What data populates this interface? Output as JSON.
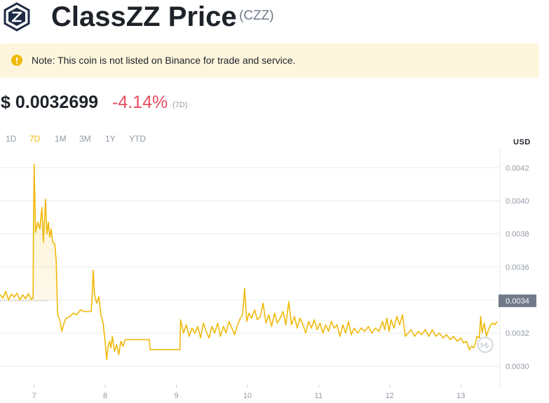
{
  "header": {
    "title": "ClassZZ Price",
    "ticker": "(CZZ)",
    "logo_icon": "classzz-logo-icon"
  },
  "note": {
    "text": "Note: This coin is not listed on Binance for trade and service.",
    "icon": "warning-icon",
    "icon_color": "#f0b90b"
  },
  "price": {
    "value": "$ 0.0032699",
    "change": "-4.14%",
    "period": "(7D)",
    "change_color": "#e74d5f"
  },
  "tabs": [
    {
      "label": "1D",
      "active": false
    },
    {
      "label": "7D",
      "active": true
    },
    {
      "label": "1M",
      "active": false
    },
    {
      "label": "3M",
      "active": false
    },
    {
      "label": "1Y",
      "active": false
    },
    {
      "label": "YTD",
      "active": false
    }
  ],
  "chart_data": {
    "type": "area",
    "title": "",
    "xlabel": "",
    "ylabel": "",
    "currency_label": "USD",
    "x_ticks": [
      "7",
      "8",
      "9",
      "10",
      "11",
      "12",
      "13"
    ],
    "y_ticks": [
      "0.0030",
      "0.0032",
      "0.0034",
      "0.0036",
      "0.0038",
      "0.0040",
      "0.0042"
    ],
    "ylim": [
      0.00287,
      0.00432
    ],
    "xlim": [
      6.52,
      13.55
    ],
    "current_price_label": "0.0034",
    "current_price": 0.003395,
    "reference_value": 0.003395,
    "grid": true,
    "line_color": "#f0b90b",
    "watermark_icon": "coinmarketcap-watermark-icon",
    "series": [
      {
        "values": [
          [
            6.52,
            0.003433
          ],
          [
            6.56,
            0.003412
          ],
          [
            6.6,
            0.003452
          ],
          [
            6.64,
            0.003401
          ],
          [
            6.68,
            0.003435
          ],
          [
            6.72,
            0.003418
          ],
          [
            6.76,
            0.003441
          ],
          [
            6.8,
            0.0034
          ],
          [
            6.84,
            0.003431
          ],
          [
            6.88,
            0.003409
          ],
          [
            6.92,
            0.003439
          ],
          [
            6.96,
            0.003403
          ],
          [
            6.985,
            0.003412
          ],
          [
            6.99,
            0.00382
          ],
          [
            7.0,
            0.00422
          ],
          [
            7.02,
            0.00381
          ],
          [
            7.05,
            0.00387
          ],
          [
            7.08,
            0.00383
          ],
          [
            7.11,
            0.00396
          ],
          [
            7.13,
            0.00375
          ],
          [
            7.16,
            0.00401
          ],
          [
            7.18,
            0.0038
          ],
          [
            7.2,
            0.00387
          ],
          [
            7.22,
            0.00378
          ],
          [
            7.24,
            0.00383
          ],
          [
            7.26,
            0.00375
          ],
          [
            7.29,
            0.00374
          ],
          [
            7.31,
            0.00364
          ],
          [
            7.33,
            0.00331
          ],
          [
            7.36,
            0.00328
          ],
          [
            7.39,
            0.00321
          ],
          [
            7.42,
            0.00326
          ],
          [
            7.45,
            0.00329
          ],
          [
            7.5,
            0.0033
          ],
          [
            7.55,
            0.00332
          ],
          [
            7.6,
            0.00331
          ],
          [
            7.65,
            0.00334
          ],
          [
            7.7,
            0.00333
          ],
          [
            7.75,
            0.00333
          ],
          [
            7.8,
            0.00333
          ],
          [
            7.81,
            0.00337
          ],
          [
            7.83,
            0.00358
          ],
          [
            7.85,
            0.00343
          ],
          [
            7.88,
            0.00338
          ],
          [
            7.91,
            0.00342
          ],
          [
            7.94,
            0.00331
          ],
          [
            7.97,
            0.00326
          ],
          [
            8.0,
            0.00314
          ],
          [
            8.02,
            0.00304
          ],
          [
            8.04,
            0.00312
          ],
          [
            8.06,
            0.00315
          ],
          [
            8.08,
            0.00311
          ],
          [
            8.1,
            0.00318
          ],
          [
            8.13,
            0.00309
          ],
          [
            8.16,
            0.00313
          ],
          [
            8.19,
            0.00307
          ],
          [
            8.22,
            0.00315
          ],
          [
            8.25,
            0.00312
          ],
          [
            8.28,
            0.00316
          ],
          [
            8.3,
            0.00316
          ],
          [
            8.62,
            0.00316
          ],
          [
            8.63,
            0.0031
          ],
          [
            9.05,
            0.0031
          ],
          [
            9.06,
            0.00328
          ],
          [
            9.1,
            0.0032
          ],
          [
            9.14,
            0.00325
          ],
          [
            9.18,
            0.00318
          ],
          [
            9.22,
            0.00323
          ],
          [
            9.26,
            0.0032
          ],
          [
            9.3,
            0.00324
          ],
          [
            9.34,
            0.00317
          ],
          [
            9.38,
            0.00326
          ],
          [
            9.42,
            0.00321
          ],
          [
            9.46,
            0.00317
          ],
          [
            9.5,
            0.00324
          ],
          [
            9.54,
            0.0032
          ],
          [
            9.58,
            0.00326
          ],
          [
            9.62,
            0.00318
          ],
          [
            9.66,
            0.00324
          ],
          [
            9.7,
            0.0032
          ],
          [
            9.74,
            0.00327
          ],
          [
            9.78,
            0.00323
          ],
          [
            9.82,
            0.00319
          ],
          [
            9.86,
            0.00325
          ],
          [
            9.9,
            0.00329
          ],
          [
            9.93,
            0.00331
          ],
          [
            9.96,
            0.00347
          ],
          [
            9.99,
            0.00327
          ],
          [
            10.02,
            0.00332
          ],
          [
            10.06,
            0.00329
          ],
          [
            10.1,
            0.00334
          ],
          [
            10.14,
            0.00328
          ],
          [
            10.18,
            0.0033
          ],
          [
            10.22,
            0.00338
          ],
          [
            10.26,
            0.00326
          ],
          [
            10.3,
            0.00331
          ],
          [
            10.34,
            0.00324
          ],
          [
            10.38,
            0.00332
          ],
          [
            10.42,
            0.00326
          ],
          [
            10.46,
            0.00329
          ],
          [
            10.5,
            0.00333
          ],
          [
            10.54,
            0.00325
          ],
          [
            10.58,
            0.00339
          ],
          [
            10.62,
            0.00325
          ],
          [
            10.66,
            0.0033
          ],
          [
            10.7,
            0.00323
          ],
          [
            10.74,
            0.00329
          ],
          [
            10.78,
            0.00325
          ],
          [
            10.82,
            0.0032
          ],
          [
            10.86,
            0.00327
          ],
          [
            10.9,
            0.00323
          ],
          [
            10.94,
            0.00328
          ],
          [
            10.98,
            0.00322
          ],
          [
            11.02,
            0.00326
          ],
          [
            11.06,
            0.0032
          ],
          [
            11.1,
            0.00325
          ],
          [
            11.14,
            0.00321
          ],
          [
            11.18,
            0.00327
          ],
          [
            11.22,
            0.00323
          ],
          [
            11.26,
            0.00325
          ],
          [
            11.3,
            0.00318
          ],
          [
            11.34,
            0.00325
          ],
          [
            11.38,
            0.0032
          ],
          [
            11.42,
            0.00327
          ],
          [
            11.46,
            0.00319
          ],
          [
            11.5,
            0.00323
          ],
          [
            11.55,
            0.0032
          ],
          [
            11.6,
            0.00323
          ],
          [
            11.65,
            0.00321
          ],
          [
            11.7,
            0.00324
          ],
          [
            11.75,
            0.0032
          ],
          [
            11.8,
            0.00323
          ],
          [
            11.85,
            0.00321
          ],
          [
            11.9,
            0.00327
          ],
          [
            11.93,
            0.00322
          ],
          [
            11.96,
            0.00329
          ],
          [
            11.99,
            0.00321
          ],
          [
            12.02,
            0.00328
          ],
          [
            12.06,
            0.00323
          ],
          [
            12.1,
            0.0033
          ],
          [
            12.14,
            0.00325
          ],
          [
            12.18,
            0.00331
          ],
          [
            12.2,
            0.00324
          ],
          [
            12.22,
            0.00318
          ],
          [
            12.26,
            0.0032
          ],
          [
            12.3,
            0.00322
          ],
          [
            12.35,
            0.00318
          ],
          [
            12.4,
            0.00321
          ],
          [
            12.45,
            0.00319
          ],
          [
            12.5,
            0.00322
          ],
          [
            12.55,
            0.00318
          ],
          [
            12.6,
            0.00322
          ],
          [
            12.65,
            0.00318
          ],
          [
            12.7,
            0.0032
          ],
          [
            12.75,
            0.00317
          ],
          [
            12.8,
            0.00319
          ],
          [
            12.85,
            0.00316
          ],
          [
            12.9,
            0.00318
          ],
          [
            12.95,
            0.00315
          ],
          [
            13.0,
            0.00317
          ],
          [
            13.04,
            0.00314
          ],
          [
            13.08,
            0.00315
          ],
          [
            13.12,
            0.0031
          ],
          [
            13.15,
            0.00312
          ],
          [
            13.18,
            0.00311
          ],
          [
            13.2,
            0.00313
          ],
          [
            13.23,
            0.00318
          ],
          [
            13.26,
            0.00317
          ],
          [
            13.28,
            0.0033
          ],
          [
            13.3,
            0.0032
          ],
          [
            13.33,
            0.00326
          ],
          [
            13.36,
            0.00318
          ],
          [
            13.39,
            0.00322
          ],
          [
            13.42,
            0.00325
          ],
          [
            13.45,
            0.00326
          ],
          [
            13.48,
            0.00325
          ],
          [
            13.51,
            0.00327
          ]
        ]
      }
    ]
  }
}
